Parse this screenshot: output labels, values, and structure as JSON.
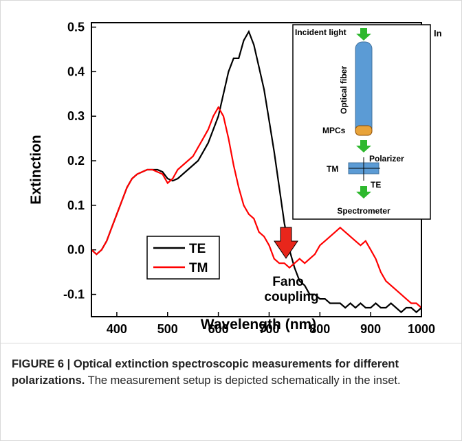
{
  "chart_data": {
    "type": "line",
    "xlabel": "Wavelength (nm)",
    "ylabel": "Extinction",
    "x": [
      350,
      360,
      370,
      380,
      390,
      400,
      410,
      420,
      430,
      440,
      450,
      460,
      470,
      480,
      490,
      500,
      510,
      520,
      530,
      540,
      550,
      560,
      570,
      580,
      590,
      600,
      610,
      620,
      630,
      640,
      650,
      660,
      670,
      680,
      690,
      700,
      710,
      720,
      730,
      740,
      750,
      760,
      770,
      780,
      790,
      800,
      810,
      820,
      830,
      840,
      850,
      860,
      870,
      880,
      890,
      900,
      910,
      920,
      930,
      940,
      950,
      960,
      970,
      980,
      990,
      1000
    ],
    "series": [
      {
        "name": "TE",
        "color": "#000000",
        "values": [
          0.0,
          -0.01,
          0.0,
          0.02,
          0.05,
          0.08,
          0.11,
          0.14,
          0.16,
          0.17,
          0.175,
          0.18,
          0.18,
          0.18,
          0.175,
          0.16,
          0.155,
          0.16,
          0.17,
          0.18,
          0.19,
          0.2,
          0.22,
          0.24,
          0.27,
          0.3,
          0.35,
          0.4,
          0.43,
          0.43,
          0.47,
          0.49,
          0.46,
          0.41,
          0.36,
          0.29,
          0.22,
          0.14,
          0.06,
          0.0,
          -0.04,
          -0.07,
          -0.08,
          -0.1,
          -0.1,
          -0.11,
          -0.11,
          -0.12,
          -0.12,
          -0.12,
          -0.13,
          -0.12,
          -0.13,
          -0.12,
          -0.13,
          -0.13,
          -0.12,
          -0.13,
          -0.13,
          -0.12,
          -0.13,
          -0.14,
          -0.13,
          -0.13,
          -0.14,
          -0.13
        ]
      },
      {
        "name": "TM",
        "color": "#ff0000",
        "values": [
          0.0,
          -0.01,
          0.0,
          0.02,
          0.05,
          0.08,
          0.11,
          0.14,
          0.16,
          0.17,
          0.175,
          0.18,
          0.18,
          0.175,
          0.17,
          0.15,
          0.16,
          0.18,
          0.19,
          0.2,
          0.21,
          0.23,
          0.25,
          0.27,
          0.3,
          0.32,
          0.3,
          0.25,
          0.19,
          0.14,
          0.1,
          0.08,
          0.07,
          0.04,
          0.03,
          0.01,
          -0.02,
          -0.03,
          -0.03,
          -0.04,
          -0.03,
          -0.02,
          -0.03,
          -0.02,
          -0.01,
          0.01,
          0.02,
          0.03,
          0.04,
          0.05,
          0.04,
          0.03,
          0.02,
          0.01,
          0.02,
          0.0,
          -0.02,
          -0.05,
          -0.07,
          -0.08,
          -0.09,
          -0.1,
          -0.11,
          -0.12,
          -0.12,
          -0.13
        ]
      }
    ],
    "xlim": [
      350,
      1000
    ],
    "xticks": [
      400,
      500,
      600,
      700,
      800,
      900,
      1000
    ],
    "ylim": [
      -0.15,
      0.51
    ],
    "yticks": [
      -0.1,
      {
        "value": 0,
        "label": "0.0"
      },
      0.1,
      0.2,
      0.3,
      0.4,
      0.5
    ],
    "annotation": {
      "text": [
        "Fano",
        "coupling"
      ],
      "arrow_color": "#e8261b"
    },
    "inset": {
      "incident": "Incident light",
      "fiber": "Optical fiber",
      "mpcs": "MPCs",
      "polarizer": "Polarizer",
      "tm": "TM",
      "te": "TE",
      "spectrometer": "Spectrometer",
      "cut": "In"
    }
  },
  "caption": {
    "bold": "FIGURE 6 | Optical extinction spectroscopic measurements for different polarizations.",
    "text": " The measurement setup is depicted schematically in the inset."
  }
}
